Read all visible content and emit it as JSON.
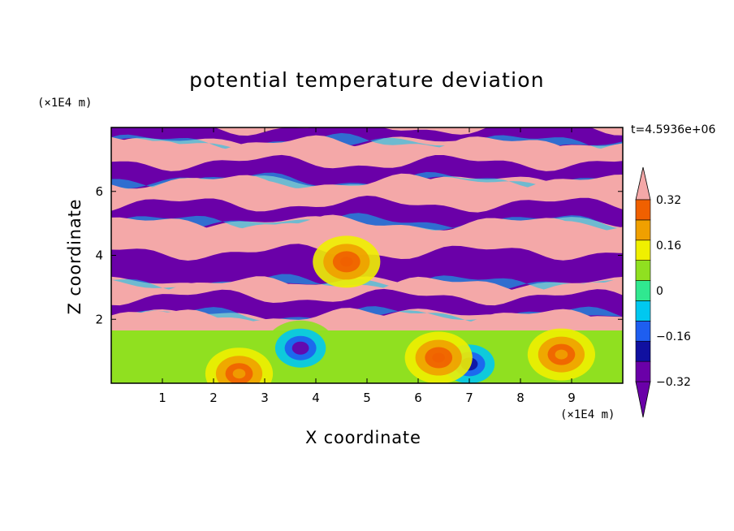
{
  "chart_data": {
    "type": "heatmap",
    "title": "potential temperature deviation",
    "xlabel": "X coordinate",
    "ylabel": "Z coordinate",
    "x_unit": "(×1E4 m)",
    "y_unit": "(×1E4 m)",
    "time_label": "t=4.5936e+06",
    "xlim": [
      0,
      10
    ],
    "ylim": [
      0,
      8
    ],
    "x_ticks": [
      1,
      2,
      3,
      4,
      5,
      6,
      7,
      8,
      9
    ],
    "y_ticks": [
      2,
      4,
      6
    ],
    "colorbar": {
      "labels": [
        "0.32",
        "0.16",
        "0",
        "−0.16",
        "−0.32"
      ],
      "label_values": [
        0.32,
        0.16,
        0,
        -0.16,
        -0.32
      ],
      "levels": [
        -0.4,
        -0.32,
        -0.24,
        -0.16,
        -0.08,
        0,
        0.08,
        0.16,
        0.24,
        0.32,
        0.4
      ],
      "colors": [
        "#6a00a8",
        "#1010a0",
        "#1e5ef0",
        "#00c8f0",
        "#30e890",
        "#90e020",
        "#f0f000",
        "#f0a000",
        "#f06000",
        "#f01818",
        "#f4a8a8"
      ],
      "under_color": "#6a00a8",
      "over_color": "#f4a8a8"
    },
    "field_bands": [
      {
        "z": [
          7.5,
          8.0
        ],
        "value": -0.4
      },
      {
        "z": [
          6.9,
          7.5
        ],
        "value": 0.4
      },
      {
        "z": [
          6.3,
          6.9
        ],
        "value": -0.4
      },
      {
        "z": [
          5.6,
          6.3
        ],
        "value": 0.4
      },
      {
        "z": [
          5.0,
          5.6
        ],
        "value": -0.4
      },
      {
        "z": [
          4.1,
          5.0
        ],
        "value": 0.4
      },
      {
        "z": [
          3.1,
          4.1
        ],
        "value": -0.4
      },
      {
        "z": [
          2.7,
          3.1
        ],
        "value": 0.4
      },
      {
        "z": [
          2.1,
          2.7
        ],
        "value": -0.4
      },
      {
        "z": [
          1.65,
          2.1
        ],
        "value": 0.4
      },
      {
        "z": [
          0.0,
          1.65
        ],
        "value": 0.04
      }
    ],
    "features": [
      {
        "x": 3.7,
        "z": 1.1,
        "value": -0.35
      },
      {
        "x": 7.0,
        "z": 0.6,
        "value": -0.25
      },
      {
        "x": 6.4,
        "z": 0.8,
        "value": 0.3
      },
      {
        "x": 4.6,
        "z": 3.8,
        "value": 0.28
      },
      {
        "x": 2.5,
        "z": 0.3,
        "value": 0.2
      },
      {
        "x": 8.8,
        "z": 0.9,
        "value": 0.16
      }
    ]
  }
}
